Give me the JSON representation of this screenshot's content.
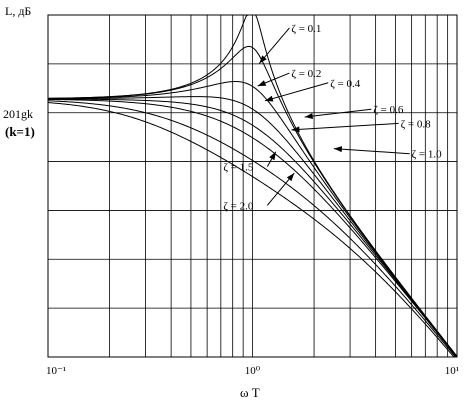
{
  "chart_data": {
    "type": "line",
    "title": "",
    "ylabel": "L, дБ",
    "xlabel": "ω T",
    "y_ref_label": "201gk",
    "y_ref_sublabel": "(k=1)",
    "x_scale": "log",
    "xlim": [
      0.1,
      10
    ],
    "ylim": [
      -40,
      13
    ],
    "grid": true,
    "x_ticks": [
      {
        "value": 0.1,
        "label": "10⁻¹"
      },
      {
        "value": 1,
        "label": "10⁰"
      },
      {
        "value": 10,
        "label": "10¹"
      }
    ],
    "series": [
      {
        "name": "ζ = 0.1",
        "zeta": 0.1
      },
      {
        "name": "ζ = 0.2",
        "zeta": 0.2
      },
      {
        "name": "ζ = 0.4",
        "zeta": 0.4
      },
      {
        "name": "ζ = 0.6",
        "zeta": 0.6
      },
      {
        "name": "ζ = 0.8",
        "zeta": 0.8
      },
      {
        "name": "ζ = 1.0",
        "zeta": 1.0
      },
      {
        "name": "ζ = 1.5",
        "zeta": 1.5
      },
      {
        "name": "ζ = 2.0",
        "zeta": 2.0
      }
    ],
    "annotations": [
      {
        "text": "ζ = 0.1",
        "series": 0,
        "label_x": 1.55,
        "label_y": 11,
        "arrow_x": 1.08,
        "arrow_y": 5.5
      },
      {
        "text": "ζ = 0.2",
        "series": 1,
        "label_x": 1.55,
        "label_y": 4,
        "arrow_x": 1.06,
        "arrow_y": 2
      },
      {
        "text": "ζ = 0.4",
        "series": 2,
        "label_x": 2.4,
        "label_y": 2.5,
        "arrow_x": 1.15,
        "arrow_y": -0.3
      },
      {
        "text": "ζ = 0.6",
        "series": 3,
        "label_x": 3.9,
        "label_y": -1.6,
        "arrow_x": 1.8,
        "arrow_y": -2.8
      },
      {
        "text": "ζ = 0.8",
        "series": 4,
        "label_x": 5.3,
        "label_y": -3.8,
        "arrow_x": 1.55,
        "arrow_y": -4.8
      },
      {
        "text": "ζ = 1.0",
        "series": 5,
        "label_x": 6.0,
        "label_y": -8.5,
        "arrow_x": 2.5,
        "arrow_y": -7.7
      },
      {
        "text": "ζ = 1.5",
        "series": 6,
        "label_x": 0.72,
        "label_y": -10.5,
        "arrow_x": 1.3,
        "arrow_y": -8.2
      },
      {
        "text": "ζ = 2.0",
        "series": 7,
        "label_x": 0.72,
        "label_y": -16.5,
        "arrow_x": 1.6,
        "arrow_y": -11.5
      }
    ]
  }
}
